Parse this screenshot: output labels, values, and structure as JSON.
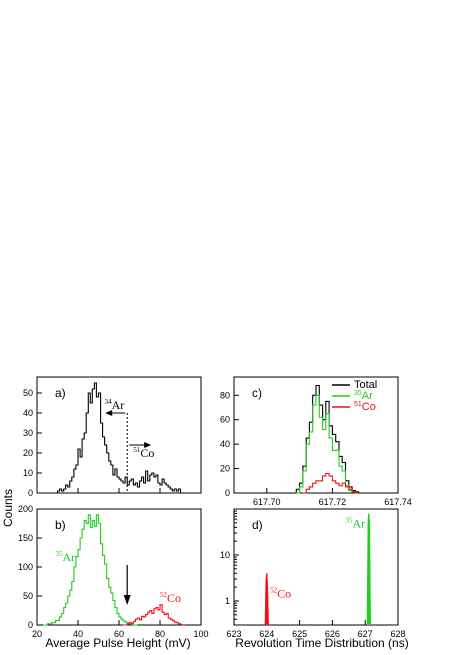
{
  "figure": {
    "ylabel": "Counts",
    "xlabel_left": "Average Pulse  Height (mV)",
    "xlabel_right": "Revolution Time Distribution  (ns)"
  },
  "colors": {
    "total": "#000000",
    "ar": "#22cc22",
    "co": "#ee1111"
  },
  "chart_data": [
    {
      "id": "a",
      "panel_label": "a)",
      "type": "line",
      "step": true,
      "xlim": [
        20,
        100
      ],
      "ylim": [
        0,
        58
      ],
      "yticks": [
        "0",
        "10",
        "20",
        "30",
        "40",
        "50"
      ],
      "xtick_values": [
        20,
        40,
        60,
        80,
        100
      ],
      "xtick_labels": [],
      "grid": false,
      "series": [
        {
          "color_key": "total",
          "x": [
            29,
            30,
            31,
            32,
            33,
            34,
            35,
            36,
            37,
            38,
            39,
            40,
            41,
            42,
            43,
            44,
            45,
            46,
            47,
            48,
            49,
            50,
            51,
            52,
            53,
            54,
            55,
            56,
            57,
            58,
            59,
            60,
            61,
            62,
            63,
            64,
            65,
            66,
            67,
            68,
            69,
            70,
            71,
            72,
            73,
            74,
            75,
            76,
            77,
            78,
            79,
            80,
            81,
            82,
            83,
            84,
            85,
            86,
            87,
            88,
            89,
            90,
            91
          ],
          "y": [
            0,
            1,
            2,
            1,
            2,
            4,
            3,
            6,
            8,
            12,
            14,
            22,
            18,
            27,
            30,
            40,
            50,
            45,
            52,
            55,
            48,
            50,
            35,
            28,
            24,
            20,
            16,
            14,
            9,
            12,
            8,
            7,
            6,
            5,
            8,
            4,
            6,
            7,
            4,
            5,
            3,
            6,
            8,
            5,
            11,
            6,
            9,
            10,
            8,
            9,
            5,
            4,
            7,
            5,
            4,
            3,
            2,
            1,
            2,
            1,
            2,
            0,
            0
          ]
        }
      ],
      "annotations": [
        {
          "sup": "34",
          "text": "Ar",
          "color_key": "total",
          "x": 53,
          "y": 42
        },
        {
          "sup": "51",
          "text": "Co",
          "color_key": "total",
          "x": 67,
          "y": 18
        }
      ],
      "divider_x": 64
    },
    {
      "id": "b",
      "panel_label": "b)",
      "type": "line",
      "step": true,
      "xlim": [
        20,
        100
      ],
      "ylim": [
        0,
        200
      ],
      "yticks": [
        "0",
        "50",
        "100",
        "150",
        "200"
      ],
      "xtick_values": [
        20,
        40,
        60,
        80,
        100
      ],
      "xtick_labels": [
        "20",
        "40",
        "60",
        "80",
        "100"
      ],
      "grid": false,
      "series": [
        {
          "color_key": "ar",
          "x": [
            23,
            25,
            27,
            29,
            31,
            32,
            33,
            34,
            35,
            36,
            37,
            38,
            39,
            40,
            41,
            42,
            43,
            44,
            45,
            46,
            47,
            48,
            49,
            50,
            51,
            52,
            53,
            54,
            55,
            56,
            57,
            58,
            59,
            60,
            61,
            62,
            63,
            64,
            65,
            66,
            67,
            68
          ],
          "y": [
            0,
            2,
            4,
            8,
            14,
            20,
            30,
            38,
            50,
            60,
            75,
            100,
            118,
            130,
            150,
            165,
            180,
            175,
            190,
            168,
            180,
            170,
            190,
            175,
            140,
            120,
            105,
            80,
            65,
            55,
            42,
            30,
            20,
            14,
            10,
            7,
            5,
            3,
            2,
            1,
            0,
            0
          ]
        },
        {
          "color_key": "co",
          "x": [
            62,
            64,
            65,
            66,
            67,
            68,
            69,
            70,
            71,
            72,
            73,
            74,
            75,
            76,
            77,
            78,
            79,
            80,
            81,
            82,
            83,
            84,
            85,
            86,
            87,
            88,
            89,
            90,
            91
          ],
          "y": [
            0,
            2,
            4,
            3,
            6,
            10,
            12,
            9,
            15,
            14,
            18,
            22,
            25,
            20,
            28,
            30,
            26,
            35,
            22,
            18,
            20,
            12,
            10,
            8,
            5,
            4,
            2,
            1,
            0
          ]
        }
      ],
      "annotations": [
        {
          "sup": "35",
          "text": "Ar",
          "color_key": "ar",
          "x": 29,
          "y": 110
        },
        {
          "sup": "52",
          "text": "Co",
          "color_key": "co",
          "x": 80,
          "y": 40
        }
      ],
      "arrow_x": 64
    },
    {
      "id": "c",
      "panel_label": "c)",
      "type": "line",
      "step": true,
      "xlim": [
        617.69,
        617.74
      ],
      "ylim": [
        0,
        95
      ],
      "yticks": [
        "0",
        "20",
        "40",
        "60",
        "80"
      ],
      "xtick_values": [
        617.7,
        617.72,
        617.74
      ],
      "xtick_labels": [
        "617.70",
        "617.72",
        "617.74"
      ],
      "grid": false,
      "legend_position": "top-right",
      "series": [
        {
          "name": "Total",
          "color_key": "total",
          "x": [
            617.708,
            617.709,
            617.71,
            617.711,
            617.712,
            617.713,
            617.714,
            617.715,
            617.716,
            617.717,
            617.718,
            617.719,
            617.72,
            617.721,
            617.722,
            617.723,
            617.724,
            617.725,
            617.726,
            617.727,
            617.728
          ],
          "y": [
            0,
            3,
            8,
            22,
            45,
            58,
            80,
            88,
            72,
            60,
            75,
            55,
            48,
            42,
            30,
            25,
            10,
            5,
            2,
            1,
            0
          ]
        },
        {
          "name": "Ar",
          "legend_sup": "35",
          "color_key": "ar",
          "x": [
            617.709,
            617.71,
            617.711,
            617.712,
            617.713,
            617.714,
            617.715,
            617.716,
            617.717,
            617.718,
            617.719,
            617.72,
            617.721,
            617.722,
            617.723,
            617.724,
            617.725,
            617.726,
            617.727
          ],
          "y": [
            0,
            5,
            18,
            40,
            50,
            72,
            80,
            62,
            52,
            65,
            45,
            35,
            35,
            22,
            18,
            6,
            2,
            1,
            0
          ]
        },
        {
          "name": "Co",
          "legend_sup": "51",
          "color_key": "co",
          "x": [
            617.711,
            617.712,
            617.713,
            617.714,
            617.715,
            617.716,
            617.717,
            617.718,
            617.719,
            617.72,
            617.721,
            617.722,
            617.723,
            617.724,
            617.725,
            617.726,
            617.727
          ],
          "y": [
            0,
            3,
            5,
            8,
            10,
            10,
            14,
            16,
            14,
            10,
            8,
            6,
            8,
            5,
            3,
            1,
            0
          ]
        }
      ]
    },
    {
      "id": "d",
      "panel_label": "d)",
      "type": "line",
      "log_y": true,
      "xlim": [
        623,
        628
      ],
      "ylim": [
        0.3,
        100
      ],
      "ytick_values": [
        1,
        10
      ],
      "ytick_labels": [
        "1",
        "10"
      ],
      "xtick_values": [
        623,
        624,
        625,
        626,
        627,
        628
      ],
      "xtick_labels": [
        "623",
        "624",
        "625",
        "626",
        "627",
        "628"
      ],
      "grid": false,
      "series": [
        {
          "color_key": "co",
          "x": [
            623.95,
            623.98,
            624.0,
            624.02,
            624.05
          ],
          "y": [
            0.3,
            3,
            4,
            2,
            0.3
          ]
        },
        {
          "color_key": "ar",
          "x": [
            627.06,
            627.09,
            627.11,
            627.13,
            627.16
          ],
          "y": [
            0.3,
            60,
            80,
            50,
            0.3
          ]
        }
      ],
      "annotations": [
        {
          "sup": "52",
          "text": "Co",
          "color_key": "co",
          "x": 624.1,
          "y": 1.2
        },
        {
          "sup": "35",
          "text": "Ar",
          "color_key": "ar",
          "x": 626.4,
          "y": 40
        }
      ]
    }
  ]
}
